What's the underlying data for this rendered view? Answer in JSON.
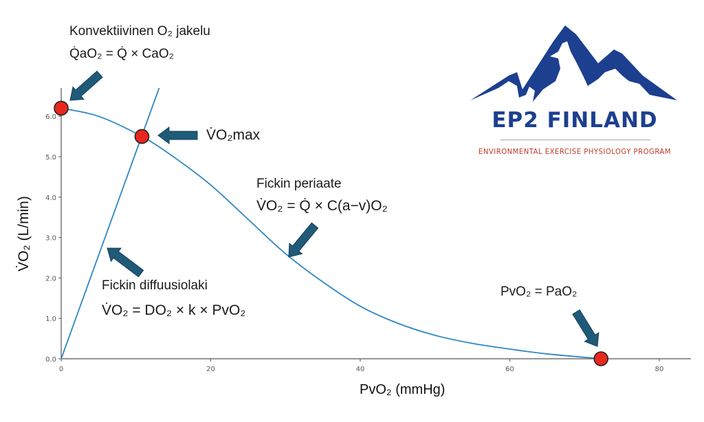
{
  "chart_data": {
    "type": "line",
    "xlabel": "PvO₂ (mmHg)",
    "ylabel": "V̇O₂ (L/min)",
    "xlim": [
      0,
      84
    ],
    "ylim": [
      0,
      6.6
    ],
    "x_ticks": [
      "0",
      "20",
      "40",
      "60",
      "80"
    ],
    "x_tick_values": [
      0,
      20,
      40,
      60,
      80
    ],
    "y_ticks": [
      "0.0",
      "1.0",
      "2.0",
      "3.0",
      "4.0",
      "5.0",
      "6.0"
    ],
    "y_tick_values": [
      0,
      1,
      2,
      3,
      4,
      5,
      6
    ],
    "series": [
      {
        "name": "Fickin periaate",
        "x": [
          0,
          5,
          10.8,
          15,
          20,
          25,
          30,
          35,
          40,
          45,
          50,
          55,
          60,
          65,
          72.2
        ],
        "y": [
          6.2,
          6.0,
          5.5,
          5.0,
          4.3,
          3.45,
          2.6,
          1.9,
          1.3,
          0.88,
          0.58,
          0.38,
          0.24,
          0.12,
          0.0
        ]
      },
      {
        "name": "Fickin diffuusiolaki",
        "x": [
          0,
          13.1
        ],
        "y": [
          0,
          6.7
        ]
      }
    ],
    "points": [
      {
        "name": "convective",
        "x": 0,
        "y": 6.2
      },
      {
        "name": "vo2max",
        "x": 10.8,
        "y": 5.5
      },
      {
        "name": "equilibrium",
        "x": 72.2,
        "y": 0
      }
    ],
    "colors": {
      "line": "#2e86c1",
      "point": "#e8281e",
      "arrow": "#1f5a78"
    }
  },
  "annotations": {
    "convective_title": "Konvektiivinen O₂ jakelu",
    "convective_eq": "Q̇aO₂ = Q̇ × CaO₂",
    "vo2max": "V̇O₂max",
    "fick_title": "Fickin periaate",
    "fick_eq": "V̇O₂ = Q̇ × C(a−v)O₂",
    "diff_title": "Fickin diffuusiolaki",
    "diff_eq": "V̇O₂ = DO₂ × k × PvO₂",
    "equal": "PvO₂ = PaO₂"
  },
  "logo": {
    "title": "EP2 FINLAND",
    "subtitle": "ENVIRONMENTAL EXERCISE PHYSIOLOGY PROGRAM",
    "color": "#1c3f8f",
    "subtitle_color": "#c0392b"
  }
}
